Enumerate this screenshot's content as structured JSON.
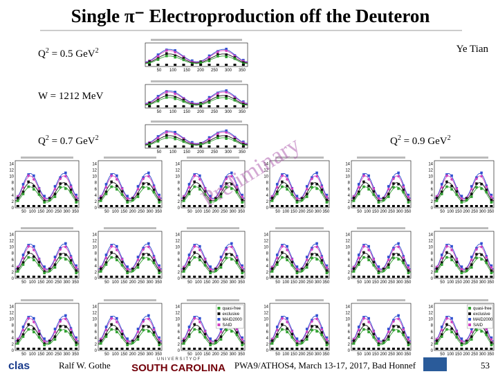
{
  "header": {
    "title": "Single π⁻ Electroproduction off the Deuteron",
    "author": "Ye Tian"
  },
  "q2_top": {
    "q": "Q",
    "exp": "2",
    "rest": " = 0.5 GeV",
    "exp2": "2"
  },
  "w_label": "W = 1212 MeV",
  "q2_left": {
    "q": "Q",
    "exp": "2",
    "rest": " = 0.7 GeV",
    "exp2": "2"
  },
  "q2_right": {
    "q": "Q",
    "exp": "2",
    "rest": " = 0.9 GeV",
    "exp2": "2"
  },
  "watermark": "Preliminary",
  "panel_axis": {
    "xticks": [
      "50",
      "100",
      "150",
      "200",
      "250",
      "300",
      "350"
    ],
    "yticks": [
      "0",
      "2",
      "4",
      "6",
      "8",
      "10",
      "12",
      "14"
    ]
  },
  "legend": [
    "quasi-free",
    "exclusive",
    "MAID2000",
    "SAID"
  ],
  "footer": {
    "logo": "clas",
    "presenter": "Ralf  W. Gothe",
    "university_top": "U N I V E R S I T Y   O F",
    "university": "SOUTH CAROLINA",
    "conference": "PWA9/ATHOS4, March 13-17, 2017, Bad Honnef",
    "page": "53"
  }
}
